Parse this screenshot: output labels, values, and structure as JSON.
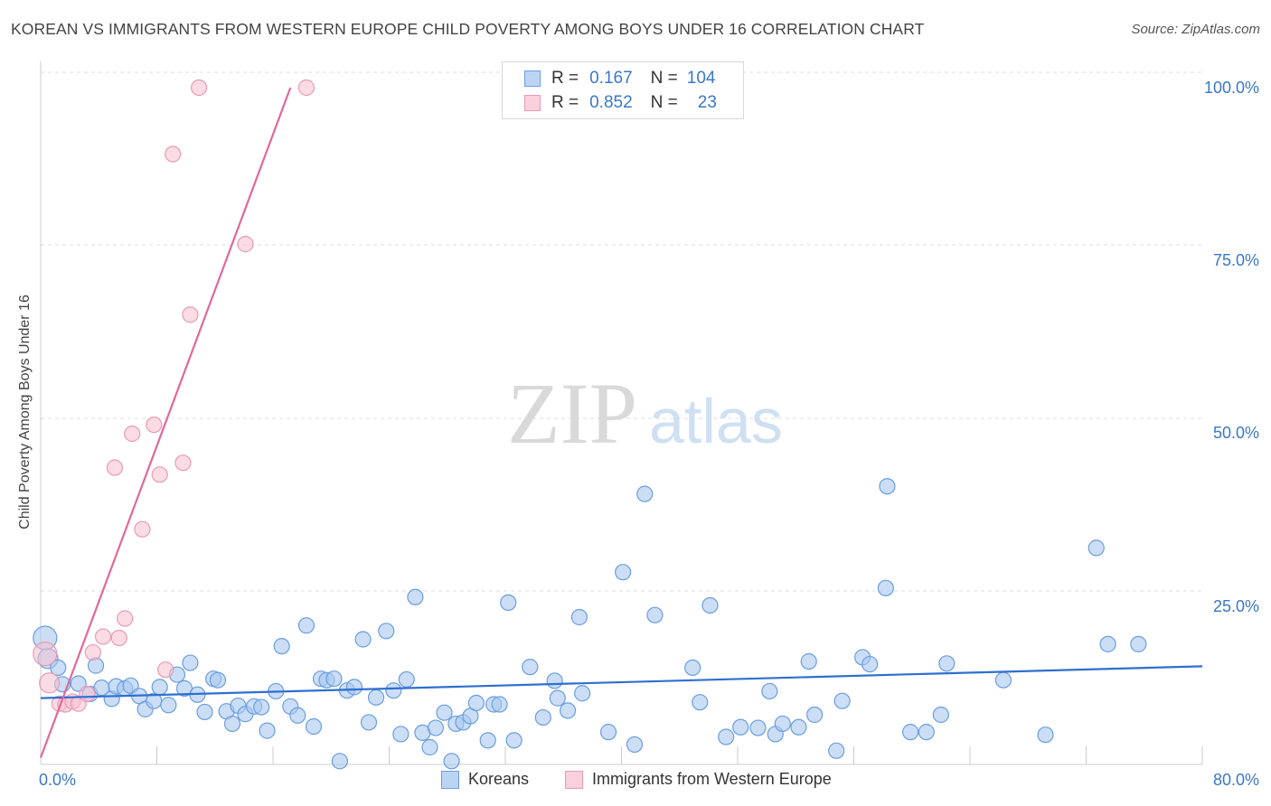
{
  "header": {
    "title": "KOREAN VS IMMIGRANTS FROM WESTERN EUROPE CHILD POVERTY AMONG BOYS UNDER 16 CORRELATION CHART",
    "source": "Source: ZipAtlas.com"
  },
  "watermark": {
    "zip": "ZIP",
    "atlas": "atlas"
  },
  "legend": {
    "koreans": {
      "r_label": "R =",
      "r_value": "0.167",
      "n_label": "N =",
      "n_value": "104"
    },
    "immigrants": {
      "r_label": "R =",
      "r_value": "0.852",
      "n_label": "N =",
      "n_value": "23"
    }
  },
  "bottom_legend": {
    "koreans": "Koreans",
    "immigrants": "Immigrants from Western Europe"
  },
  "colors": {
    "blue_fill": "#a9c8f0",
    "blue_stroke": "#6a9ee0",
    "blue_line": "#2f6fcf",
    "pink_fill": "#f7c0d0",
    "pink_stroke": "#ea9ab3",
    "pink_line": "#e0689a",
    "axis_label": "#3a78c8",
    "grid": "#dddddd"
  },
  "chart_data": {
    "type": "scatter",
    "title": "KOREAN VS IMMIGRANTS FROM WESTERN EUROPE CHILD POVERTY AMONG BOYS UNDER 16 CORRELATION CHART",
    "xlabel": "",
    "ylabel": "Child Poverty Among Boys Under 16",
    "xlim": [
      0,
      80
    ],
    "ylim": [
      0,
      100
    ],
    "x_tick_labels": [
      "0.0%",
      "80.0%"
    ],
    "y_ticks": [
      25,
      50,
      75,
      100
    ],
    "y_tick_labels": [
      "25.0%",
      "50.0%",
      "75.0%",
      "100.0%"
    ],
    "series": [
      {
        "name": "Koreans",
        "r": 0.167,
        "n": 104,
        "trend": {
          "x0": 0,
          "y0": 11.8,
          "x1": 80,
          "y1": 16.4
        },
        "points": [
          [
            0.3,
            20.5
          ],
          [
            0.5,
            17.5
          ],
          [
            1.2,
            16.2
          ],
          [
            3.8,
            16.5
          ],
          [
            1.5,
            13.8
          ],
          [
            2.6,
            13.9
          ],
          [
            3.4,
            12.4
          ],
          [
            4.2,
            13.3
          ],
          [
            4.9,
            11.7
          ],
          [
            5.2,
            13.5
          ],
          [
            5.8,
            13.2
          ],
          [
            6.2,
            13.6
          ],
          [
            6.8,
            12.1
          ],
          [
            7.2,
            10.2
          ],
          [
            7.8,
            11.4
          ],
          [
            8.2,
            13.4
          ],
          [
            8.8,
            10.8
          ],
          [
            9.4,
            15.2
          ],
          [
            9.9,
            13.2
          ],
          [
            10.3,
            16.9
          ],
          [
            10.8,
            12.3
          ],
          [
            11.3,
            9.8
          ],
          [
            11.9,
            14.6
          ],
          [
            12.2,
            14.4
          ],
          [
            12.8,
            9.9
          ],
          [
            13.2,
            8.1
          ],
          [
            13.6,
            10.7
          ],
          [
            14.1,
            9.5
          ],
          [
            14.7,
            10.6
          ],
          [
            15.2,
            10.5
          ],
          [
            15.6,
            7.1
          ],
          [
            16.2,
            12.8
          ],
          [
            16.6,
            19.3
          ],
          [
            17.2,
            10.6
          ],
          [
            17.7,
            9.3
          ],
          [
            18.3,
            22.3
          ],
          [
            18.8,
            7.7
          ],
          [
            19.3,
            14.6
          ],
          [
            19.7,
            14.4
          ],
          [
            20.2,
            14.6
          ],
          [
            20.6,
            2.7
          ],
          [
            21.1,
            12.9
          ],
          [
            21.6,
            13.4
          ],
          [
            22.2,
            20.3
          ],
          [
            22.6,
            8.3
          ],
          [
            23.1,
            11.9
          ],
          [
            23.8,
            21.5
          ],
          [
            24.3,
            12.9
          ],
          [
            24.8,
            6.6
          ],
          [
            25.2,
            14.5
          ],
          [
            25.8,
            26.4
          ],
          [
            26.3,
            6.8
          ],
          [
            26.8,
            4.7
          ],
          [
            27.2,
            7.5
          ],
          [
            27.8,
            9.7
          ],
          [
            28.3,
            2.7
          ],
          [
            28.6,
            8.1
          ],
          [
            29.1,
            8.3
          ],
          [
            29.6,
            9.2
          ],
          [
            30.0,
            11.1
          ],
          [
            30.8,
            5.7
          ],
          [
            31.2,
            10.9
          ],
          [
            31.6,
            10.9
          ],
          [
            32.2,
            25.6
          ],
          [
            32.6,
            5.7
          ],
          [
            33.7,
            16.3
          ],
          [
            34.6,
            9.0
          ],
          [
            35.4,
            14.3
          ],
          [
            35.6,
            11.8
          ],
          [
            36.3,
            10.0
          ],
          [
            37.1,
            23.5
          ],
          [
            37.3,
            12.5
          ],
          [
            39.1,
            6.9
          ],
          [
            40.1,
            30.0
          ],
          [
            40.9,
            5.1
          ],
          [
            41.6,
            41.3
          ],
          [
            42.3,
            23.8
          ],
          [
            44.9,
            16.2
          ],
          [
            45.4,
            11.2
          ],
          [
            46.1,
            25.2
          ],
          [
            47.2,
            6.2
          ],
          [
            48.2,
            7.6
          ],
          [
            49.4,
            7.5
          ],
          [
            50.2,
            12.8
          ],
          [
            50.6,
            6.6
          ],
          [
            51.1,
            8.1
          ],
          [
            52.2,
            7.6
          ],
          [
            52.9,
            17.1
          ],
          [
            53.3,
            9.4
          ],
          [
            54.8,
            4.2
          ],
          [
            55.2,
            11.4
          ],
          [
            56.6,
            17.7
          ],
          [
            57.1,
            16.7
          ],
          [
            58.2,
            27.7
          ],
          [
            58.3,
            42.4
          ],
          [
            59.9,
            6.9
          ],
          [
            61.0,
            6.9
          ],
          [
            62.0,
            9.4
          ],
          [
            62.4,
            16.8
          ],
          [
            66.3,
            14.4
          ],
          [
            72.7,
            33.5
          ],
          [
            73.5,
            19.6
          ],
          [
            75.6,
            19.6
          ],
          [
            69.2,
            6.5
          ]
        ]
      },
      {
        "name": "Immigrants from Western Europe",
        "r": 0.852,
        "n": 23,
        "trend": {
          "x0": 0,
          "y0": 3.2,
          "x1": 17.2,
          "y1": 100
        },
        "points": [
          [
            0.3,
            18.2
          ],
          [
            0.6,
            14.0
          ],
          [
            1.3,
            11.0
          ],
          [
            1.7,
            10.9
          ],
          [
            2.2,
            11.3
          ],
          [
            2.6,
            11.0
          ],
          [
            3.2,
            12.4
          ],
          [
            3.6,
            18.4
          ],
          [
            4.3,
            20.7
          ],
          [
            5.1,
            45.1
          ],
          [
            5.4,
            20.5
          ],
          [
            5.8,
            23.3
          ],
          [
            6.3,
            50.0
          ],
          [
            7.0,
            36.2
          ],
          [
            7.8,
            51.3
          ],
          [
            8.2,
            44.1
          ],
          [
            8.6,
            15.9
          ],
          [
            9.1,
            90.4
          ],
          [
            9.8,
            45.8
          ],
          [
            10.3,
            67.2
          ],
          [
            10.9,
            100.0
          ],
          [
            14.1,
            77.4
          ],
          [
            18.3,
            100.0
          ]
        ]
      }
    ]
  }
}
